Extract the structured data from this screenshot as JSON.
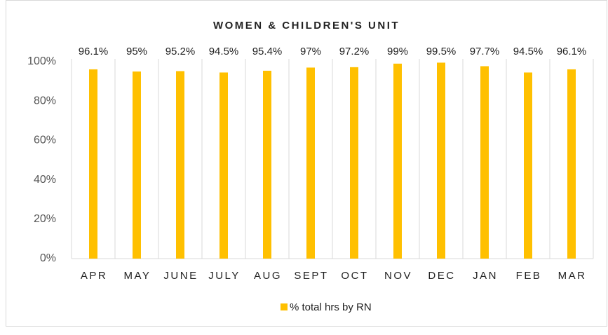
{
  "chart_data": {
    "type": "bar",
    "title": "WOMEN & CHILDREN'S UNIT",
    "categories": [
      "APR",
      "MAY",
      "JUNE",
      "JULY",
      "AUG",
      "SEPT",
      "OCT",
      "NOV",
      "DEC",
      "JAN",
      "FEB",
      "MAR"
    ],
    "series": [
      {
        "name": "% total hrs by RN",
        "color": "#ffc000",
        "values": [
          96.1,
          95,
          95.2,
          94.5,
          95.4,
          97,
          97.2,
          99,
          99.5,
          97.7,
          94.5,
          96.1
        ],
        "value_labels": [
          "96.1%",
          "95%",
          "95.2%",
          "94.5%",
          "95.4%",
          "97%",
          "97.2%",
          "99%",
          "99.5%",
          "97.7%",
          "94.5%",
          "96.1%"
        ]
      }
    ],
    "ylim": [
      0,
      100
    ],
    "yticks": [
      {
        "value": 0,
        "label": "0%"
      },
      {
        "value": 20,
        "label": "20%"
      },
      {
        "value": 40,
        "label": "40%"
      },
      {
        "value": 60,
        "label": "60%"
      },
      {
        "value": 80,
        "label": "80%"
      },
      {
        "value": 100,
        "label": "100%"
      }
    ],
    "legend": "bottom"
  }
}
